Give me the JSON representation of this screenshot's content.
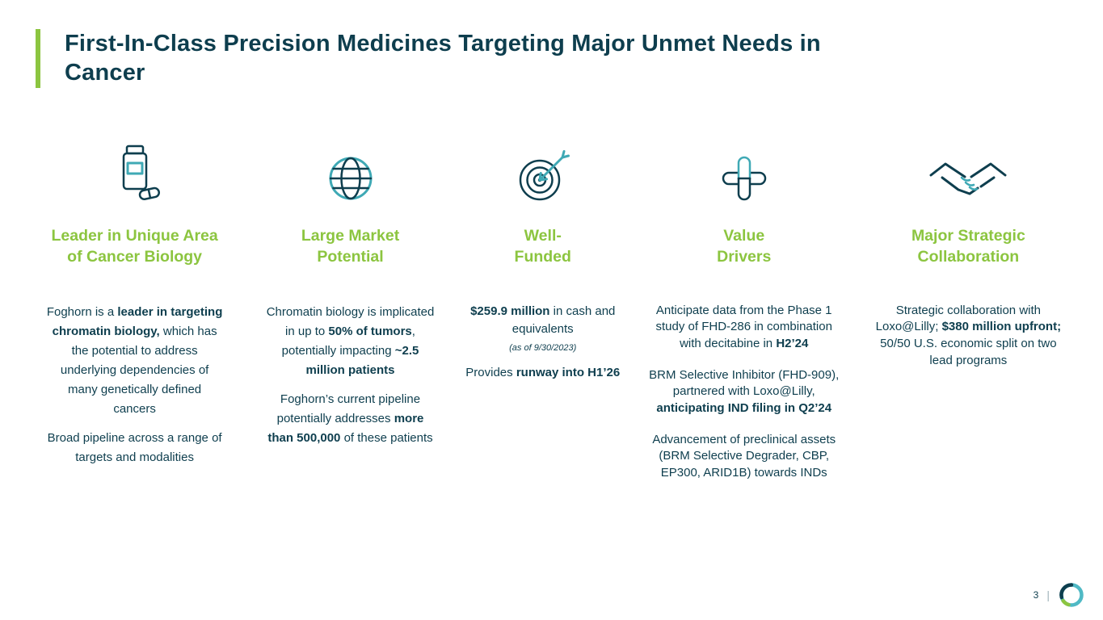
{
  "slide": {
    "title": "First-In-Class Precision Medicines Targeting Major Unmet Needs in\nCancer",
    "page_number": "3",
    "footer_divider": "|"
  },
  "colors": {
    "green": "#8CC540",
    "navy": "#0E3E4E",
    "teal": "#3FA9B5",
    "logo_teal": "#4FB9C5"
  },
  "columns": [
    {
      "icon": "pill-bottle-icon",
      "heading": "Leader in Unique Area\nof Cancer Biology",
      "paragraphs": [
        {
          "runs": [
            {
              "t": "Foghorn is a "
            },
            {
              "t": "leader in targeting chromatin biology,",
              "b": true
            },
            {
              "t": " which has the potential to address underlying dependencies of many genetically defined cancers"
            }
          ]
        },
        {
          "runs": [
            {
              "t": "Broad pipeline across a range of targets and modalities"
            }
          ]
        }
      ]
    },
    {
      "icon": "globe-icon",
      "heading": "Large Market\nPotential",
      "paragraphs": [
        {
          "runs": [
            {
              "t": "Chromatin biology is implicated in up to "
            },
            {
              "t": "50% of tumors",
              "b": true
            },
            {
              "t": ", potentially impacting "
            },
            {
              "t": "~2.5 million patients",
              "b": true
            }
          ]
        },
        {
          "runs": [
            {
              "t": "Foghorn’s current pipeline potentially addresses "
            },
            {
              "t": "more than 500,000",
              "b": true
            },
            {
              "t": " of these patients"
            }
          ]
        }
      ]
    },
    {
      "icon": "target-arrow-icon",
      "heading": "Well-\nFunded",
      "paragraphs": [
        {
          "runs": [
            {
              "t": "$259.9 million",
              "b": true
            },
            {
              "t": " in cash and equivalents"
            }
          ]
        },
        {
          "style": "note",
          "runs": [
            {
              "t": "(as of 9/30/2023)"
            }
          ]
        },
        {
          "runs": [
            {
              "t": "Provides "
            },
            {
              "t": "runway into H1’26",
              "b": true
            }
          ]
        }
      ]
    },
    {
      "icon": "medical-cross-icon",
      "heading": "Value\nDrivers",
      "paragraphs": [
        {
          "runs": [
            {
              "t": "Anticipate data from the Phase 1 study of FHD-286 in combination with decitabine in "
            },
            {
              "t": "H2’24",
              "b": true
            }
          ]
        },
        {
          "runs": [
            {
              "t": "BRM Selective Inhibitor (FHD-909), partnered with Loxo@Lilly, "
            },
            {
              "t": "anticipating IND filing in Q2’24",
              "b": true
            }
          ]
        },
        {
          "runs": [
            {
              "t": "Advancement of preclinical assets (BRM Selective Degrader, CBP, EP300, ARID1B) towards INDs"
            }
          ]
        }
      ]
    },
    {
      "icon": "handshake-icon",
      "heading": "Major Strategic\nCollaboration",
      "paragraphs": [
        {
          "runs": [
            {
              "t": "Strategic collaboration with Loxo@Lilly; "
            },
            {
              "t": "$380 million upfront;",
              "b": true
            },
            {
              "t": " 50/50 U.S. economic split on two lead programs"
            }
          ]
        }
      ]
    }
  ]
}
